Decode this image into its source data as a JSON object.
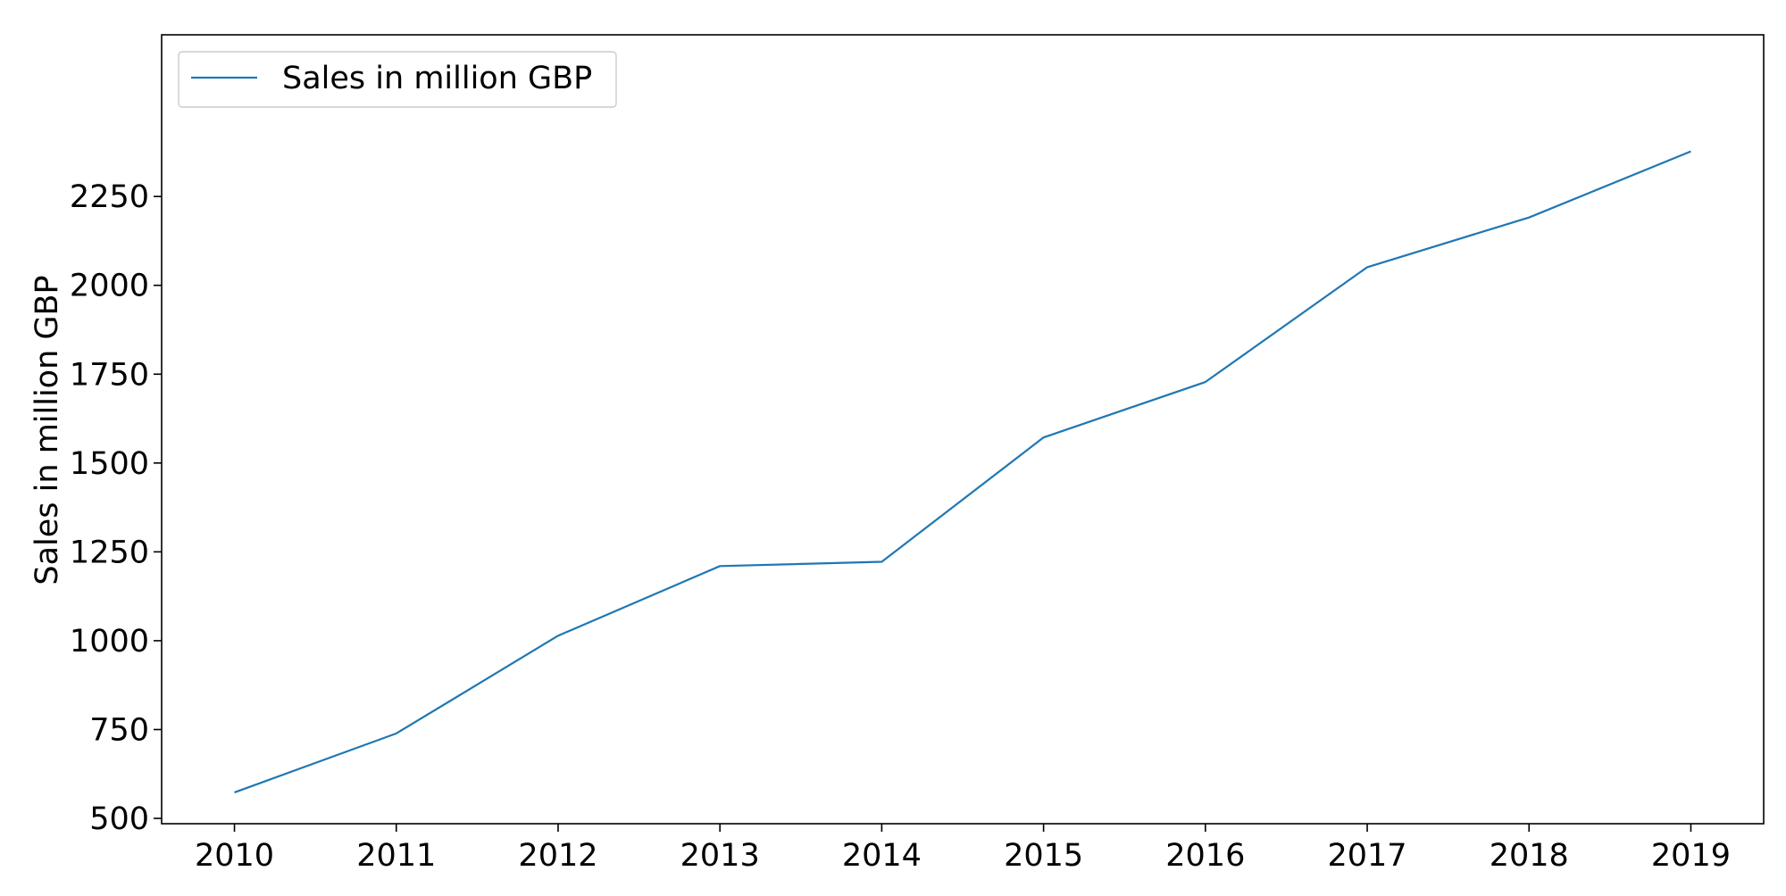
{
  "chart_data": {
    "type": "line",
    "title": "",
    "xlabel": "",
    "ylabel": "Sales in million GBP",
    "x": [
      2010,
      2011,
      2012,
      2013,
      2014,
      2015,
      2016,
      2017,
      2018,
      2019
    ],
    "series": [
      {
        "name": "Sales in million GBP",
        "color": "#1f77b4",
        "values": [
          573,
          739,
          1014,
          1210,
          1222,
          1572,
          1728,
          2051,
          2191,
          2377
        ]
      }
    ],
    "xlim": [
      2009.55,
      2019.45
    ],
    "ylim": [
      485,
      2705
    ],
    "yticks": [
      500,
      750,
      1000,
      1250,
      1500,
      1750,
      2000,
      2250
    ],
    "xticks": [
      2010,
      2011,
      2012,
      2013,
      2014,
      2015,
      2016,
      2017,
      2018,
      2019
    ],
    "grid": false,
    "legend_position": "top-left"
  }
}
